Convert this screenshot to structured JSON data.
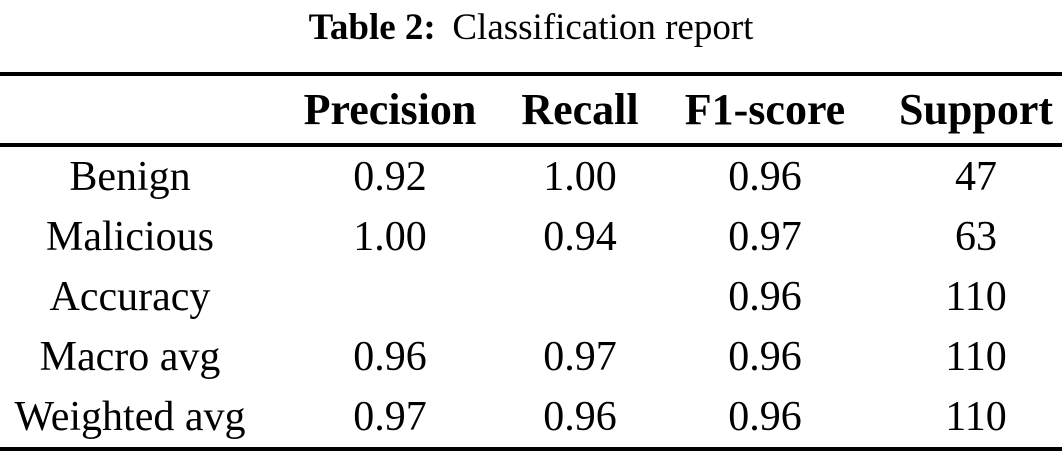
{
  "caption": {
    "label": "Table 2:",
    "text": "Classification report"
  },
  "table": {
    "columns": [
      "",
      "Precision",
      "Recall",
      "F1-score",
      "Support"
    ],
    "rows": [
      {
        "label": "Benign",
        "precision": "0.92",
        "recall": "1.00",
        "f1": "0.96",
        "support": "47"
      },
      {
        "label": "Malicious",
        "precision": "1.00",
        "recall": "0.94",
        "f1": "0.97",
        "support": "63"
      },
      {
        "label": "Accuracy",
        "precision": "",
        "recall": "",
        "f1": "0.96",
        "support": "110"
      },
      {
        "label": "Macro avg",
        "precision": "0.96",
        "recall": "0.97",
        "f1": "0.96",
        "support": "110"
      },
      {
        "label": "Weighted avg",
        "precision": "0.97",
        "recall": "0.96",
        "f1": "0.96",
        "support": "110"
      }
    ]
  },
  "colors": {
    "text": "#000000",
    "background": "#ffffff",
    "rule": "#000000"
  }
}
